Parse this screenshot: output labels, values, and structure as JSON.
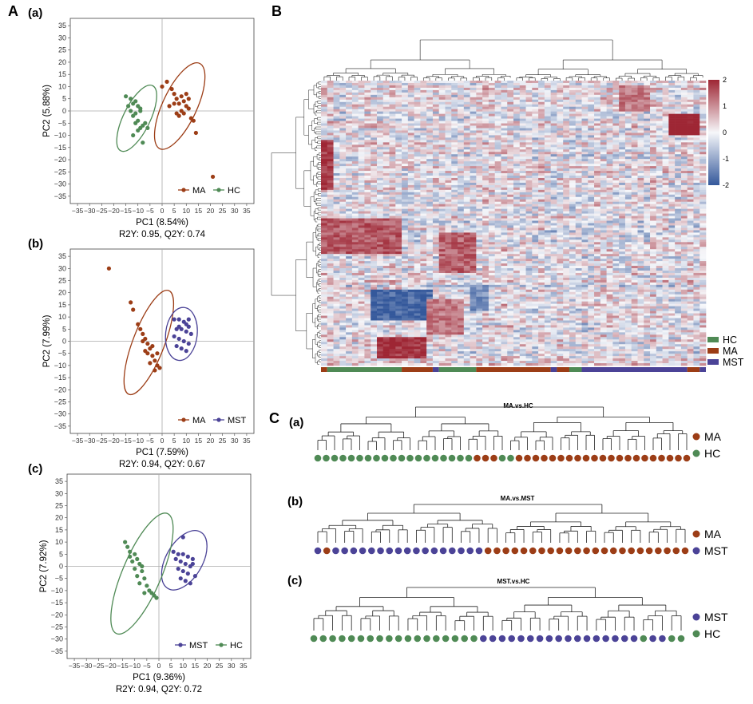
{
  "figure": {
    "panel_labels": {
      "A": "A",
      "B": "B",
      "C": "C"
    },
    "sub_labels": [
      "(a)",
      "(b)",
      "(c)"
    ]
  },
  "colors": {
    "MA": "#9c3d16",
    "HC": "#4f8a55",
    "MST": "#4b4397"
  },
  "chart_data": [
    {
      "type": "scatter",
      "id": "pca-a",
      "panel": "(a)",
      "xlabel": "PC1 (8.54%)",
      "ylabel": "PC2 (5.88%)",
      "stats": "R2Y: 0.95, Q2Y: 0.74",
      "xlim": [
        -38,
        38
      ],
      "ylim": [
        -38,
        38
      ],
      "xticks": [
        -35,
        -30,
        -25,
        -20,
        -15,
        -10,
        -5,
        0,
        5,
        10,
        15,
        20,
        25,
        30,
        35
      ],
      "yticks": [
        35,
        30,
        25,
        20,
        15,
        10,
        5,
        0,
        -5,
        -10,
        -15,
        -20,
        -25,
        -30,
        -35
      ],
      "xtick_labels": [
        "−35",
        "−30",
        "−25",
        "−20",
        "−15",
        "−10",
        "−5",
        "0",
        "5",
        "10",
        "15",
        "20",
        "25",
        "30",
        "35"
      ],
      "ytick_labels": [
        "35",
        "30",
        "25",
        "20",
        "15",
        "10",
        "5",
        "0",
        "−5",
        "−10",
        "−15",
        "−20",
        "−25",
        "−30",
        "−35"
      ],
      "grid": false,
      "legend_position": "bottom-right",
      "series": [
        {
          "name": "MA",
          "color": "#9c3d16",
          "points": [
            [
              0,
              10
            ],
            [
              2,
              12
            ],
            [
              4,
              9
            ],
            [
              5,
              7
            ],
            [
              6,
              5
            ],
            [
              7,
              3
            ],
            [
              8,
              6
            ],
            [
              9,
              4
            ],
            [
              10,
              2
            ],
            [
              11,
              1
            ],
            [
              12,
              -3
            ],
            [
              13,
              -4
            ],
            [
              14,
              -9
            ],
            [
              9,
              -1
            ],
            [
              8,
              0
            ],
            [
              7,
              -2
            ],
            [
              10,
              7
            ],
            [
              5,
              3
            ],
            [
              6,
              -1
            ],
            [
              21,
              -27
            ],
            [
              3,
              2
            ],
            [
              11,
              5
            ]
          ],
          "ellipse": {
            "cx": 7.3,
            "cy": 2.0,
            "rx": 19.5,
            "ry": 7.0,
            "angle": -65
          }
        },
        {
          "name": "HC",
          "color": "#4f8a55",
          "points": [
            [
              -15,
              6
            ],
            [
              -13,
              5
            ],
            [
              -12,
              3
            ],
            [
              -11,
              4
            ],
            [
              -10,
              2
            ],
            [
              -9,
              0
            ],
            [
              -12,
              -2
            ],
            [
              -10,
              -4
            ],
            [
              -8,
              -6
            ],
            [
              -9,
              -7
            ],
            [
              -11,
              -5
            ],
            [
              -13,
              0
            ],
            [
              -14,
              2
            ],
            [
              -7,
              -5
            ],
            [
              -6,
              -7
            ],
            [
              -12,
              -10
            ],
            [
              -8,
              -13
            ],
            [
              -10,
              -8
            ],
            [
              -9,
              1
            ],
            [
              -11,
              -1
            ]
          ],
          "ellipse": {
            "cx": -10.5,
            "cy": -3.0,
            "rx": 15.0,
            "ry": 5.5,
            "angle": -64
          }
        }
      ]
    },
    {
      "type": "scatter",
      "id": "pca-b",
      "panel": "(b)",
      "xlabel": "PC1 (7.59%)",
      "ylabel": "PC2 (7.99%)",
      "stats": "R2Y: 0.94, Q2Y: 0.67",
      "xlim": [
        -38,
        38
      ],
      "ylim": [
        -38,
        38
      ],
      "xticks": [
        -35,
        -30,
        -25,
        -20,
        -15,
        -10,
        -5,
        0,
        5,
        10,
        15,
        20,
        25,
        30,
        35
      ],
      "yticks": [
        35,
        30,
        25,
        20,
        15,
        10,
        5,
        0,
        -5,
        -10,
        -15,
        -20,
        -25,
        -30,
        -35
      ],
      "xtick_labels": [
        "−35",
        "−30",
        "−25",
        "−20",
        "−15",
        "−10",
        "−5",
        "0",
        "5",
        "10",
        "15",
        "20",
        "25",
        "30",
        "35"
      ],
      "ytick_labels": [
        "35",
        "30",
        "25",
        "20",
        "15",
        "10",
        "5",
        "0",
        "−5",
        "−10",
        "−15",
        "−20",
        "−25",
        "−30",
        "−35"
      ],
      "grid": false,
      "legend_position": "bottom-right",
      "series": [
        {
          "name": "MA",
          "color": "#9c3d16",
          "points": [
            [
              -22,
              30
            ],
            [
              -13,
              16
            ],
            [
              -12,
              13
            ],
            [
              -10,
              7
            ],
            [
              -9,
              5
            ],
            [
              -8,
              3
            ],
            [
              -7,
              1
            ],
            [
              -6,
              -1
            ],
            [
              -5,
              -3
            ],
            [
              -6,
              -5
            ],
            [
              -4,
              -6
            ],
            [
              -3,
              -8
            ],
            [
              -2,
              -10
            ],
            [
              -1,
              -11
            ],
            [
              -3,
              -12
            ],
            [
              -5,
              -9
            ],
            [
              -7,
              -4
            ],
            [
              -4,
              -2
            ],
            [
              -8,
              0
            ],
            [
              -2,
              -5
            ]
          ],
          "ellipse": {
            "cx": -5.5,
            "cy": -0.5,
            "rx": 23.0,
            "ry": 6.5,
            "angle": -69
          }
        },
        {
          "name": "MST",
          "color": "#4b4397",
          "points": [
            [
              5,
              9
            ],
            [
              7,
              9
            ],
            [
              9,
              8
            ],
            [
              10,
              7
            ],
            [
              11,
              6
            ],
            [
              6,
              5
            ],
            [
              8,
              5
            ],
            [
              10,
              4
            ],
            [
              12,
              3
            ],
            [
              5,
              2
            ],
            [
              7,
              1
            ],
            [
              9,
              0
            ],
            [
              11,
              -1
            ],
            [
              6,
              -2
            ],
            [
              8,
              -3
            ],
            [
              10,
              -4
            ],
            [
              7,
              6
            ],
            [
              11,
              9
            ]
          ],
          "ellipse": {
            "cx": 8.0,
            "cy": 3.0,
            "rx": 11.0,
            "ry": 6.5,
            "angle": -84
          }
        }
      ]
    },
    {
      "type": "scatter",
      "id": "pca-c",
      "panel": "(c)",
      "xlabel": "PC1 (9.36%)",
      "ylabel": "PC2 (7.92%)",
      "stats": "R2Y: 0.94, Q2Y: 0.72",
      "xlim": [
        -38,
        38
      ],
      "ylim": [
        -38,
        38
      ],
      "xticks": [
        -35,
        -30,
        -25,
        -20,
        -15,
        -10,
        -5,
        0,
        5,
        10,
        15,
        20,
        25,
        30,
        35
      ],
      "yticks": [
        35,
        30,
        25,
        20,
        15,
        10,
        5,
        0,
        -5,
        -10,
        -15,
        -20,
        -25,
        -30,
        -35
      ],
      "xtick_labels": [
        "−35",
        "−30",
        "−25",
        "−20",
        "−15",
        "−10",
        "−5",
        "0",
        "5",
        "10",
        "15",
        "20",
        "25",
        "30",
        "35"
      ],
      "ytick_labels": [
        "35",
        "30",
        "25",
        "20",
        "15",
        "10",
        "5",
        "0",
        "−5",
        "−10",
        "−15",
        "−20",
        "−25",
        "−30",
        "−35"
      ],
      "grid": false,
      "legend_position": "bottom-right",
      "series": [
        {
          "name": "MST",
          "color": "#4b4397",
          "points": [
            [
              10,
              12
            ],
            [
              6,
              6
            ],
            [
              8,
              5
            ],
            [
              10,
              5
            ],
            [
              12,
              4
            ],
            [
              14,
              3
            ],
            [
              7,
              3
            ],
            [
              9,
              2
            ],
            [
              11,
              1
            ],
            [
              13,
              0
            ],
            [
              8,
              -1
            ],
            [
              10,
              -2
            ],
            [
              12,
              -3
            ],
            [
              15,
              -4
            ],
            [
              9,
              -5
            ],
            [
              11,
              -6
            ],
            [
              13,
              -7
            ],
            [
              14,
              1
            ]
          ],
          "ellipse": {
            "cx": 10.5,
            "cy": 2.5,
            "rx": 13.5,
            "ry": 7.5,
            "angle": -60
          }
        },
        {
          "name": "HC",
          "color": "#4f8a55",
          "points": [
            [
              -14,
              10
            ],
            [
              -13,
              8
            ],
            [
              -12,
              6
            ],
            [
              -10,
              5
            ],
            [
              -9,
              3
            ],
            [
              -11,
              2
            ],
            [
              -8,
              1
            ],
            [
              -10,
              -1
            ],
            [
              -7,
              -2
            ],
            [
              -9,
              -4
            ],
            [
              -6,
              -5
            ],
            [
              -8,
              -7
            ],
            [
              -5,
              -8
            ],
            [
              -4,
              -10
            ],
            [
              -3,
              -11
            ],
            [
              -2,
              -12
            ],
            [
              -1,
              -13
            ],
            [
              -6,
              -11
            ],
            [
              -12,
              4
            ],
            [
              -7,
              0
            ]
          ],
          "ellipse": {
            "cx": -7.0,
            "cy": -3.0,
            "rx": 27.0,
            "ry": 8.0,
            "angle": -67
          }
        }
      ]
    },
    {
      "type": "heatmap",
      "id": "heatmap-b",
      "panel": "B",
      "colorbar": {
        "min": -2,
        "max": 2,
        "ticks": [
          2,
          1,
          0,
          -1,
          -2
        ],
        "tick_labels": [
          "2",
          "1",
          "0",
          "-1",
          "-2"
        ]
      },
      "columns": 62,
      "rows": 120,
      "column_groups": [
        {
          "group": "MA",
          "count": 1
        },
        {
          "group": "HC",
          "count": 12
        },
        {
          "group": "MA",
          "count": 5
        },
        {
          "group": "MST",
          "count": 1
        },
        {
          "group": "HC",
          "count": 6
        },
        {
          "group": "MA",
          "count": 12
        },
        {
          "group": "MST",
          "count": 1
        },
        {
          "group": "MA",
          "count": 2
        },
        {
          "group": "HC",
          "count": 2
        },
        {
          "group": "MST",
          "count": 17
        },
        {
          "group": "MA",
          "count": 2
        },
        {
          "group": "MST",
          "count": 1
        }
      ],
      "legend": [
        "HC",
        "MA",
        "MST"
      ],
      "hot_blocks": [
        {
          "r": [
            14,
            22
          ],
          "c": [
            56,
            60
          ],
          "v": 2.3
        },
        {
          "r": [
            25,
            45
          ],
          "c": [
            0,
            1
          ],
          "v": 1.8
        },
        {
          "r": [
            58,
            72
          ],
          "c": [
            0,
            12
          ],
          "v": 1.5
        },
        {
          "r": [
            88,
            100
          ],
          "c": [
            8,
            17
          ],
          "v": -1.8
        },
        {
          "r": [
            64,
            80
          ],
          "c": [
            19,
            24
          ],
          "v": 1.4
        },
        {
          "r": [
            108,
            116
          ],
          "c": [
            9,
            16
          ],
          "v": 1.9
        },
        {
          "r": [
            92,
            106
          ],
          "c": [
            17,
            22
          ],
          "v": 1.2
        },
        {
          "r": [
            2,
            12
          ],
          "c": [
            48,
            52
          ],
          "v": 1.2
        },
        {
          "r": [
            86,
            96
          ],
          "c": [
            24,
            26
          ],
          "v": -1.3
        }
      ]
    },
    {
      "type": "dendrogram",
      "id": "dendro-a",
      "panel": "(a)",
      "title": "MA.vs.HC",
      "leaves": [
        "HC",
        "HC",
        "HC",
        "HC",
        "HC",
        "HC",
        "HC",
        "HC",
        "HC",
        "HC",
        "HC",
        "HC",
        "HC",
        "HC",
        "HC",
        "HC",
        "HC",
        "HC",
        "HC",
        "MA",
        "MA",
        "MA",
        "HC",
        "HC",
        "MA",
        "MA",
        "MA",
        "MA",
        "MA",
        "MA",
        "MA",
        "MA",
        "MA",
        "MA",
        "MA",
        "MA",
        "MA",
        "MA",
        "MA",
        "MA",
        "MA",
        "MA",
        "MA",
        "MA",
        "MA"
      ],
      "legend": [
        "MA",
        "HC"
      ]
    },
    {
      "type": "dendrogram",
      "id": "dendro-b",
      "panel": "(b)",
      "title": "MA.vs.MST",
      "leaves": [
        "MST",
        "MA",
        "MST",
        "MST",
        "MST",
        "MST",
        "MST",
        "MST",
        "MST",
        "MST",
        "MST",
        "MST",
        "MST",
        "MST",
        "MST",
        "MST",
        "MST",
        "MST",
        "MST",
        "MA",
        "MA",
        "MA",
        "MA",
        "MA",
        "MA",
        "MA",
        "MA",
        "MA",
        "MA",
        "MA",
        "MA",
        "MA",
        "MA",
        "MA",
        "MA",
        "MA",
        "MA",
        "MA",
        "MA",
        "MA",
        "MA",
        "MA"
      ],
      "legend": [
        "MA",
        "MST"
      ]
    },
    {
      "type": "dendrogram",
      "id": "dendro-c",
      "panel": "(c)",
      "title": "MST.vs.HC",
      "leaves": [
        "HC",
        "HC",
        "HC",
        "HC",
        "HC",
        "HC",
        "HC",
        "HC",
        "HC",
        "HC",
        "HC",
        "HC",
        "HC",
        "HC",
        "HC",
        "HC",
        "HC",
        "HC",
        "MST",
        "MST",
        "MST",
        "MST",
        "MST",
        "MST",
        "MST",
        "MST",
        "MST",
        "MST",
        "MST",
        "MST",
        "MST",
        "MST",
        "MST",
        "MST",
        "MST",
        "HC",
        "MST",
        "MST",
        "HC",
        "HC"
      ],
      "legend": [
        "MST",
        "HC"
      ]
    }
  ]
}
